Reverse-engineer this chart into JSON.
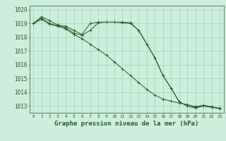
{
  "xlabel": "Graphe pression niveau de la mer (hPa)",
  "hours": [
    0,
    1,
    2,
    3,
    4,
    5,
    6,
    7,
    8,
    9,
    10,
    11,
    12,
    13,
    14,
    15,
    16,
    17,
    18,
    19,
    20,
    21,
    22,
    23
  ],
  "line1": [
    1019.0,
    1019.5,
    1019.2,
    1018.9,
    1018.8,
    1018.5,
    1018.2,
    1019.0,
    1019.1,
    1019.1,
    1019.1,
    1019.1,
    1019.05,
    1018.5,
    1017.5,
    1016.5,
    1015.2,
    1014.3,
    1013.3,
    1013.0,
    1012.9,
    1013.0,
    1012.9,
    1012.85
  ],
  "line2": [
    1019.0,
    1019.4,
    1019.0,
    1018.85,
    1018.7,
    1018.3,
    1018.15,
    1018.5,
    1019.05,
    1019.1,
    1019.1,
    1019.05,
    1019.0,
    1018.5,
    1017.5,
    1016.5,
    1015.2,
    1014.3,
    1013.3,
    1013.0,
    1012.85,
    1013.0,
    1012.9,
    1012.8
  ],
  "line3": [
    1019.0,
    1019.3,
    1018.95,
    1018.8,
    1018.6,
    1018.2,
    1017.9,
    1017.5,
    1017.1,
    1016.7,
    1016.2,
    1015.7,
    1015.2,
    1014.7,
    1014.2,
    1013.8,
    1013.5,
    1013.35,
    1013.2,
    1013.1,
    1012.95,
    1013.05,
    1012.95,
    1012.8
  ],
  "bg_color": "#cceedd",
  "grid_color": "#99ccaa",
  "line_color": "#2d5a27",
  "ylim_min": 1012.5,
  "ylim_max": 1020.3,
  "yticks": [
    1013,
    1014,
    1015,
    1016,
    1017,
    1018,
    1019,
    1020
  ],
  "ytick_fontsize": 5.5,
  "xtick_fontsize": 4.5,
  "xlabel_fontsize": 6.5
}
